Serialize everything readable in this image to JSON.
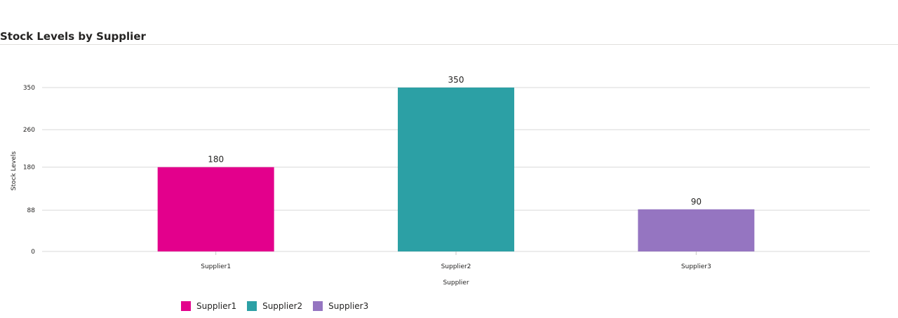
{
  "header": {
    "title": "Stock Levels by Supplier"
  },
  "chart_data": {
    "type": "bar",
    "title": "Stock Levels by Supplier",
    "categories": [
      "Supplier1",
      "Supplier2",
      "Supplier3"
    ],
    "values": [
      180,
      350,
      90
    ],
    "colors": [
      "#E3008C",
      "#2CA0A5",
      "#9575C1"
    ],
    "xlabel": "Supplier",
    "ylabel": "Stock Levels",
    "ylim": [
      0,
      350
    ],
    "yticks": [
      0,
      88,
      180,
      260,
      350
    ],
    "ytick_labels": [
      "0",
      "88",
      "180",
      "260",
      "350"
    ],
    "data_labels": [
      "180",
      "350",
      "90"
    ],
    "grid": true,
    "legend": {
      "position": "bottom-left",
      "items": [
        {
          "label": "Supplier1",
          "color": "#E3008C"
        },
        {
          "label": "Supplier2",
          "color": "#2CA0A5"
        },
        {
          "label": "Supplier3",
          "color": "#9575C1"
        }
      ]
    }
  }
}
